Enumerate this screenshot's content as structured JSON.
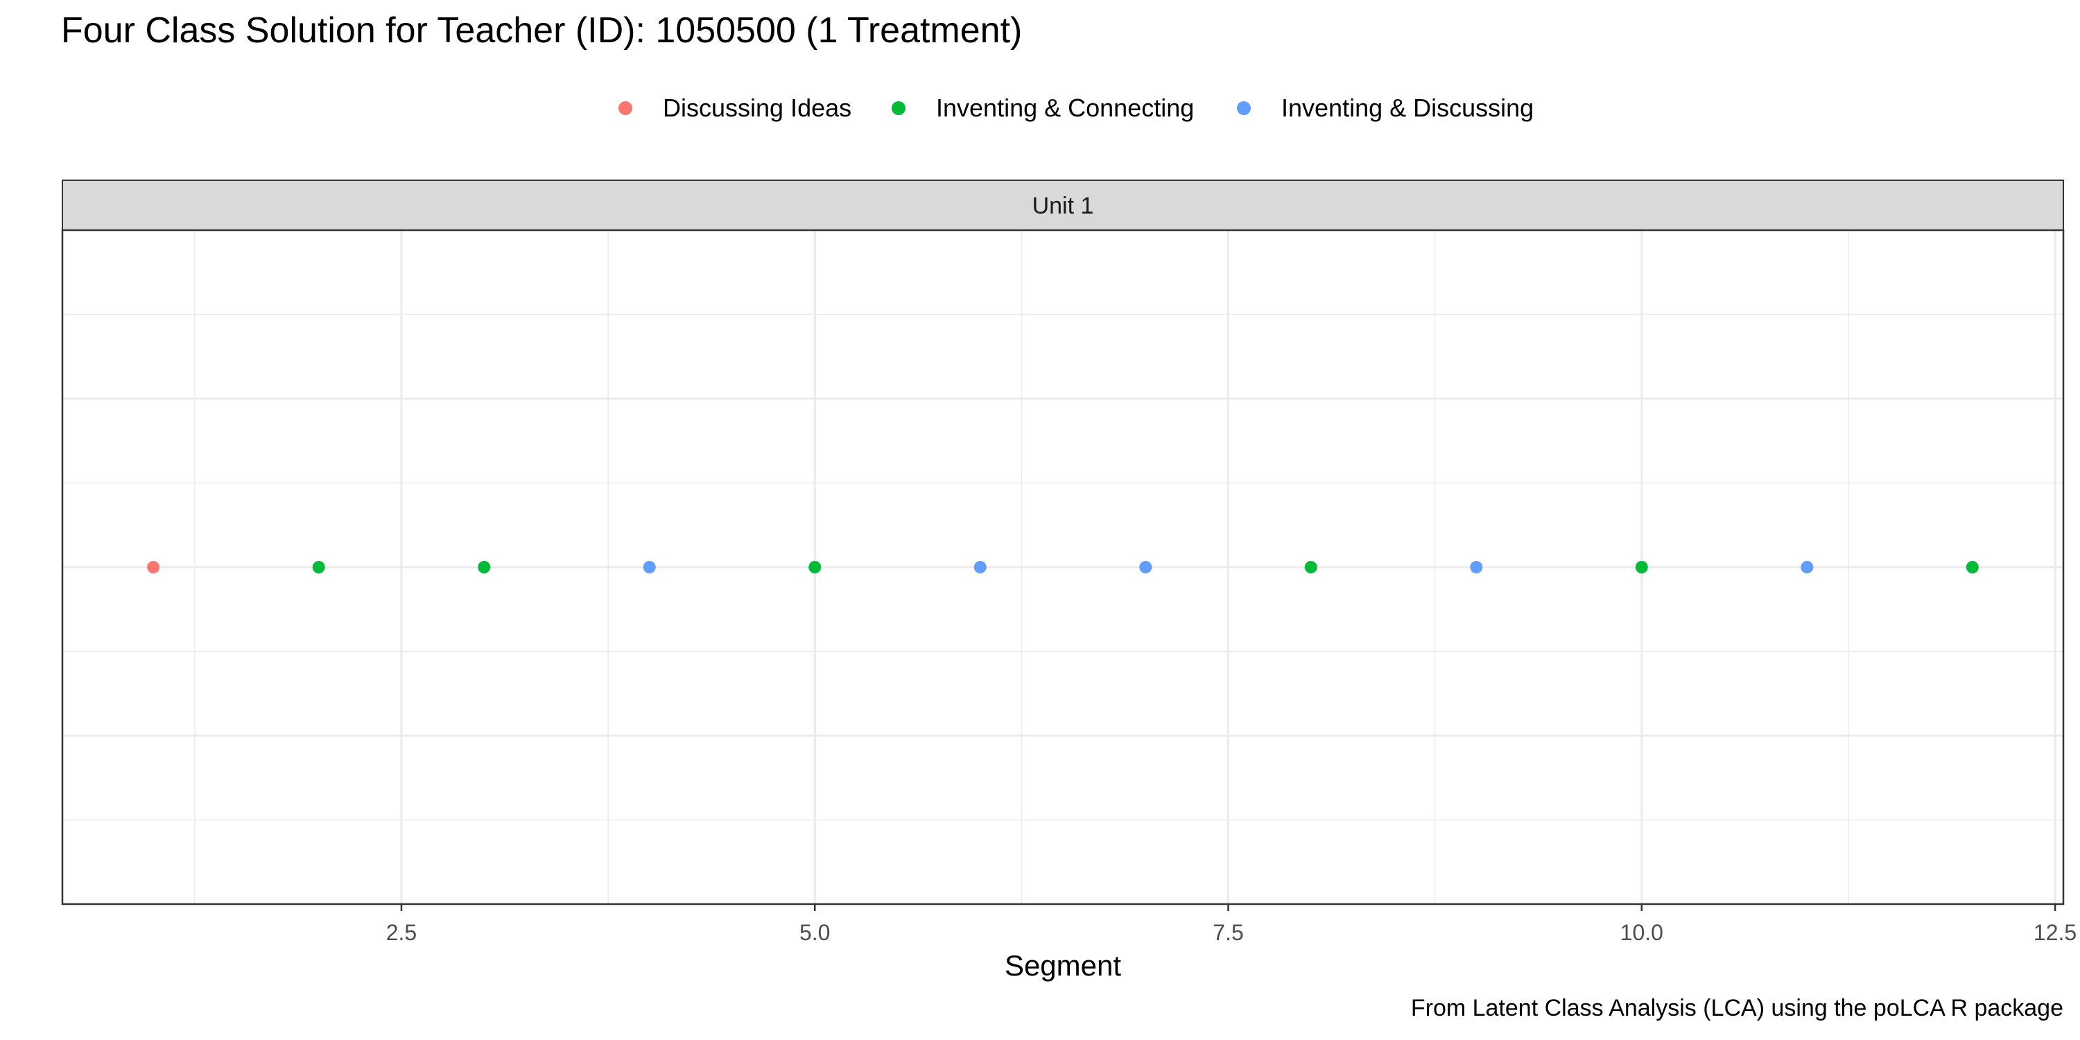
{
  "title": "Four Class Solution for Teacher (ID): 1050500 (1 Treatment)",
  "caption": "From Latent Class Analysis (LCA) using the poLCA R package",
  "legend": [
    {
      "label": "Discussing Ideas",
      "color": "#F8766D"
    },
    {
      "label": "Inventing & Connecting",
      "color": "#00BA38"
    },
    {
      "label": "Inventing & Discussing",
      "color": "#619CFF"
    }
  ],
  "chart_data": {
    "type": "scatter",
    "facet": "Unit 1",
    "xlabel": "Segment",
    "ylabel": "",
    "xlim": [
      0.45,
      12.55
    ],
    "xticks": [
      2.5,
      5.0,
      7.5,
      10.0,
      12.5
    ],
    "xtick_labels": [
      "2.5",
      "5.0",
      "7.5",
      "10.0",
      "12.5"
    ],
    "y_ticks_shown": false,
    "grid": true,
    "legend_position": "top",
    "points": [
      {
        "x": 1,
        "class": "Discussing Ideas"
      },
      {
        "x": 2,
        "class": "Inventing & Connecting"
      },
      {
        "x": 3,
        "class": "Inventing & Connecting"
      },
      {
        "x": 4,
        "class": "Inventing & Discussing"
      },
      {
        "x": 5,
        "class": "Inventing & Connecting"
      },
      {
        "x": 6,
        "class": "Inventing & Discussing"
      },
      {
        "x": 7,
        "class": "Inventing & Discussing"
      },
      {
        "x": 8,
        "class": "Inventing & Connecting"
      },
      {
        "x": 9,
        "class": "Inventing & Discussing"
      },
      {
        "x": 10,
        "class": "Inventing & Connecting"
      },
      {
        "x": 11,
        "class": "Inventing & Discussing"
      },
      {
        "x": 12,
        "class": "Inventing & Connecting"
      }
    ]
  }
}
